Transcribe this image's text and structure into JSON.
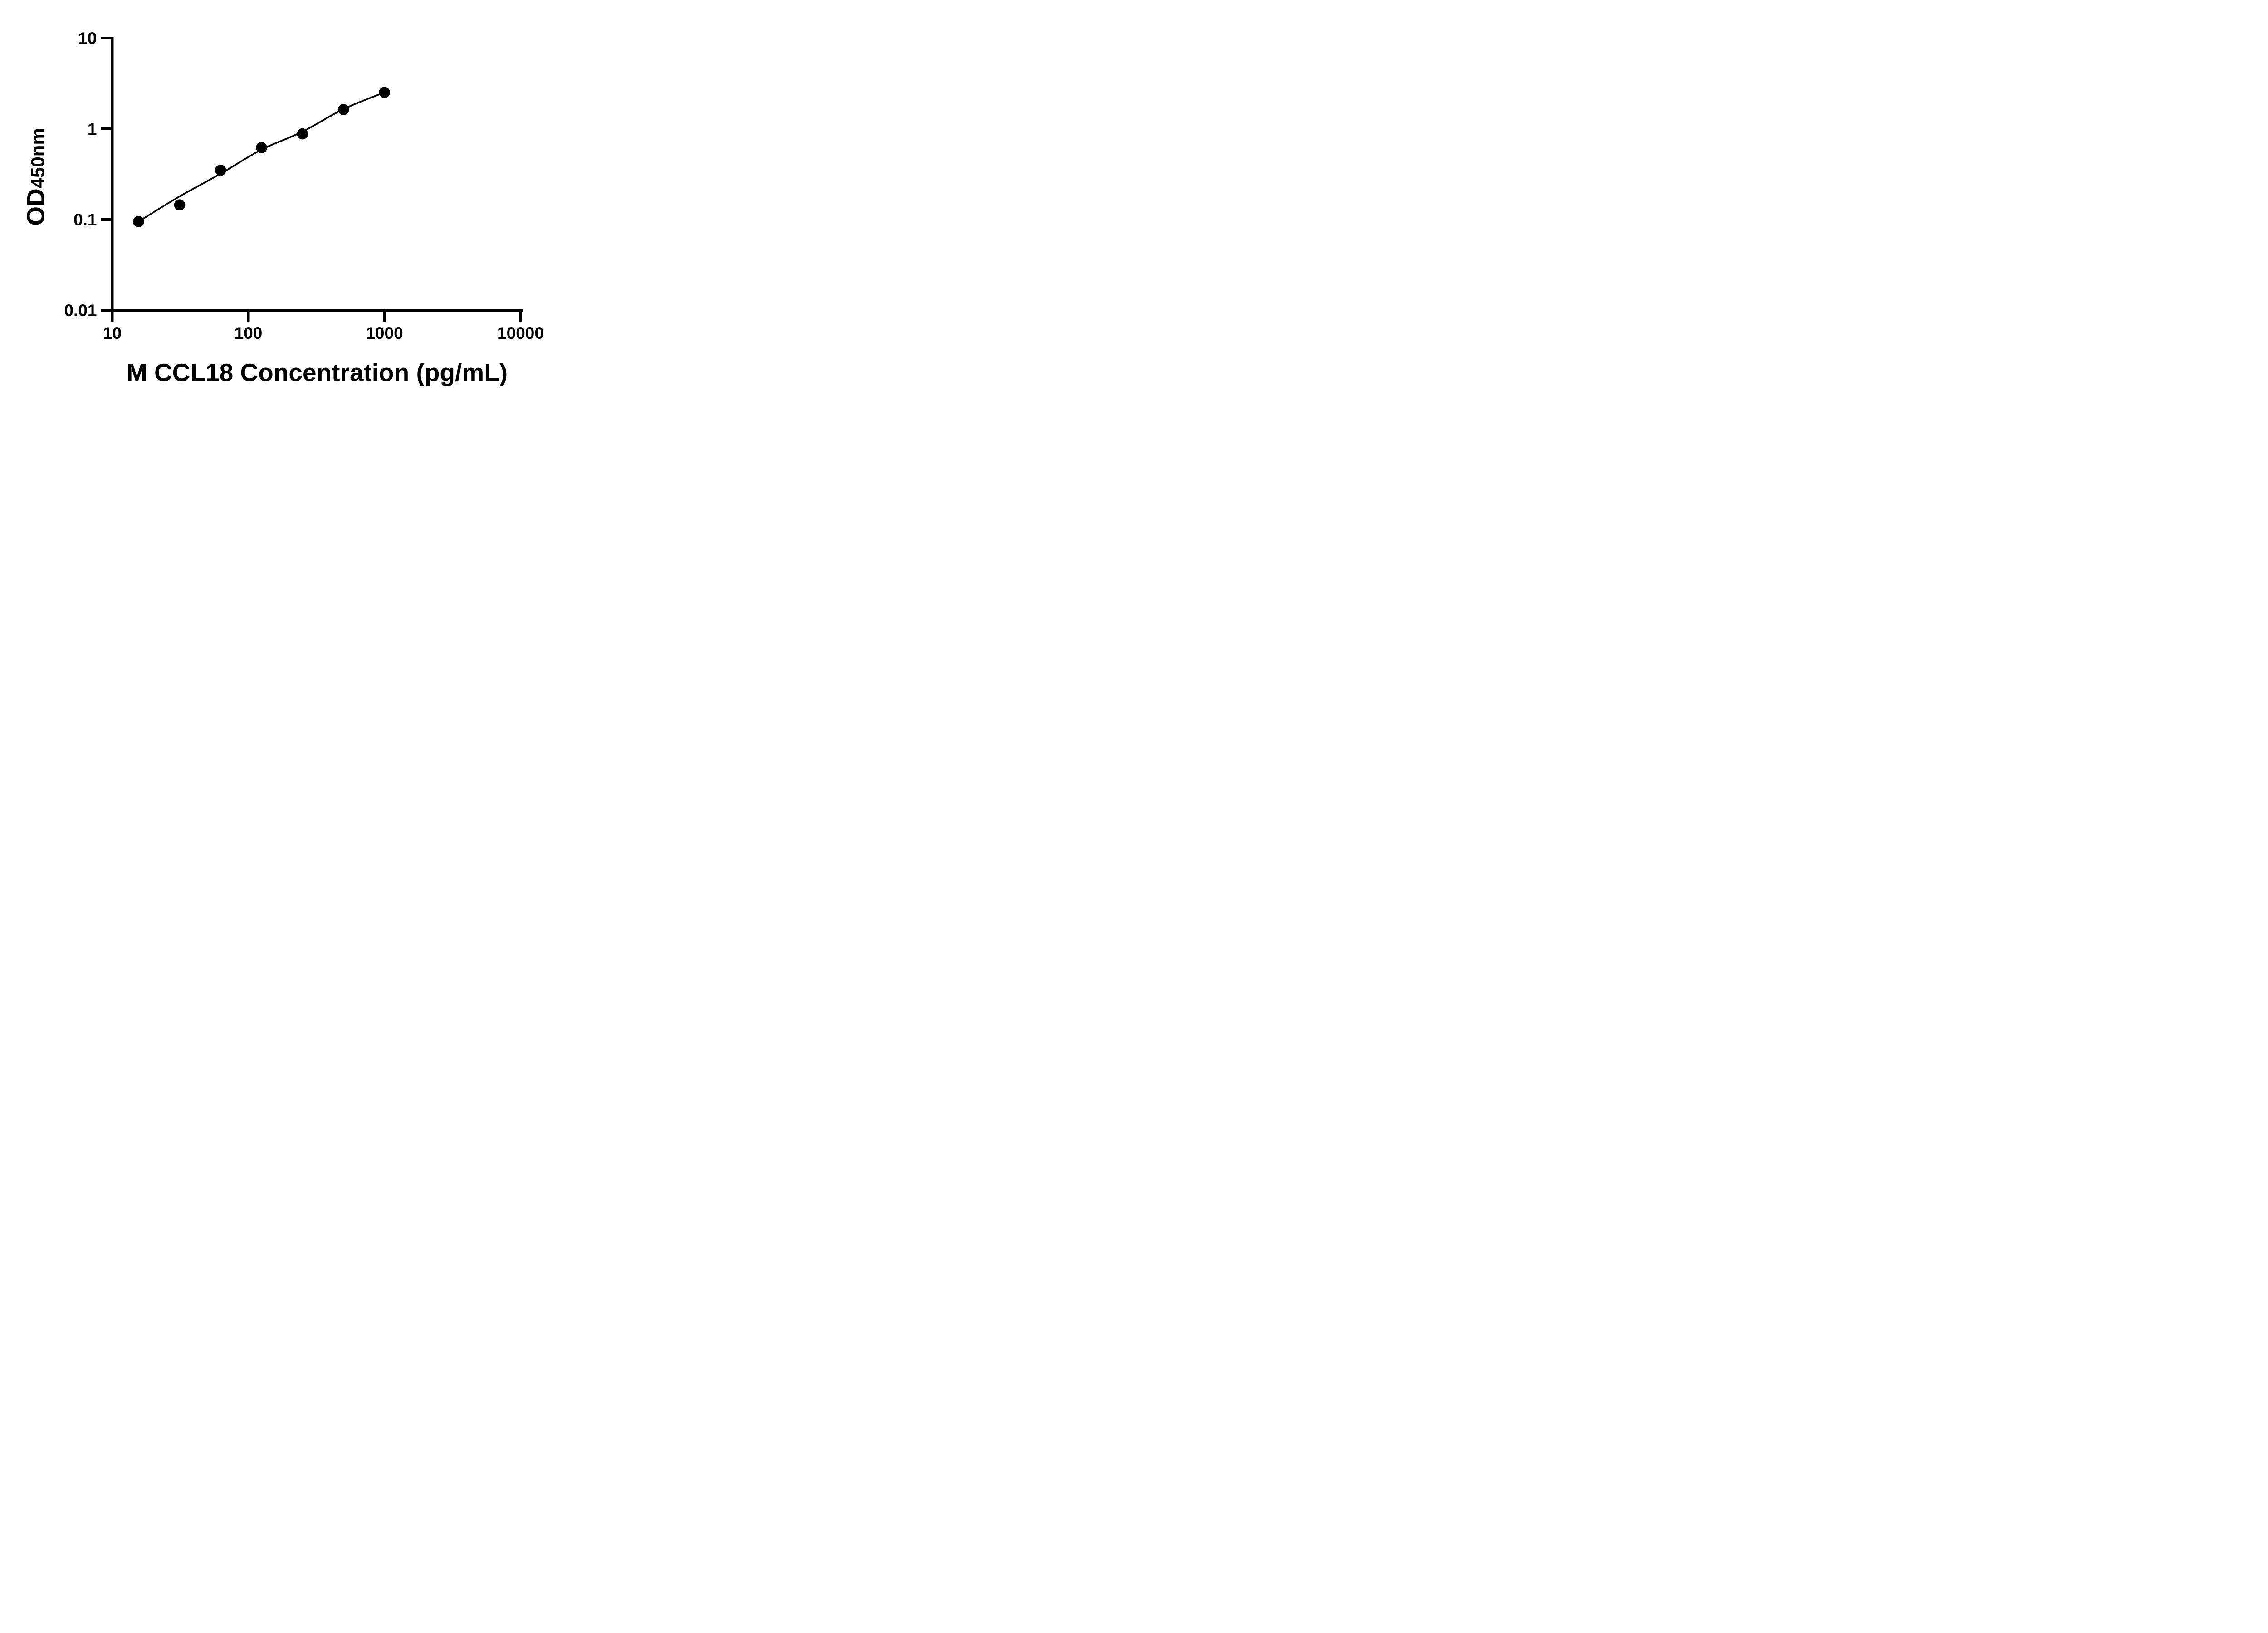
{
  "chart_data": {
    "type": "scatter",
    "title": "",
    "xlabel": "M CCL18 Concentration (pg/mL)",
    "ylabel_main": "OD",
    "ylabel_sub": "450nm",
    "x_scale": "log10",
    "y_scale": "log10",
    "xlim": [
      10,
      10000
    ],
    "ylim": [
      0.01,
      10
    ],
    "x_ticks": [
      10,
      100,
      1000,
      10000
    ],
    "x_tick_labels": [
      "10",
      "100",
      "1000",
      "10000"
    ],
    "y_ticks": [
      10,
      1,
      0.1,
      0.01
    ],
    "y_tick_labels": [
      "10",
      "1",
      "0.1",
      "0.01"
    ],
    "grid": false,
    "legend": false,
    "background_color": "#ffffff",
    "axis_color": "#000000",
    "marker_color": "#000000",
    "line_color": "#000000",
    "series": [
      {
        "name": "standard curve data points",
        "marker": "circle",
        "points": [
          {
            "x": 15.6,
            "y": 0.095
          },
          {
            "x": 31.25,
            "y": 0.145
          },
          {
            "x": 62.5,
            "y": 0.35
          },
          {
            "x": 125,
            "y": 0.62
          },
          {
            "x": 250,
            "y": 0.88
          },
          {
            "x": 500,
            "y": 1.63
          },
          {
            "x": 1000,
            "y": 2.52
          }
        ]
      }
    ],
    "fit_curve": {
      "name": "fitted standard curve line",
      "points": [
        {
          "x": 15.6,
          "y": 0.095
        },
        {
          "x": 31.25,
          "y": 0.18
        },
        {
          "x": 62.5,
          "y": 0.32
        },
        {
          "x": 125,
          "y": 0.59
        },
        {
          "x": 250,
          "y": 0.93
        },
        {
          "x": 500,
          "y": 1.65
        },
        {
          "x": 1000,
          "y": 2.52
        }
      ]
    }
  }
}
